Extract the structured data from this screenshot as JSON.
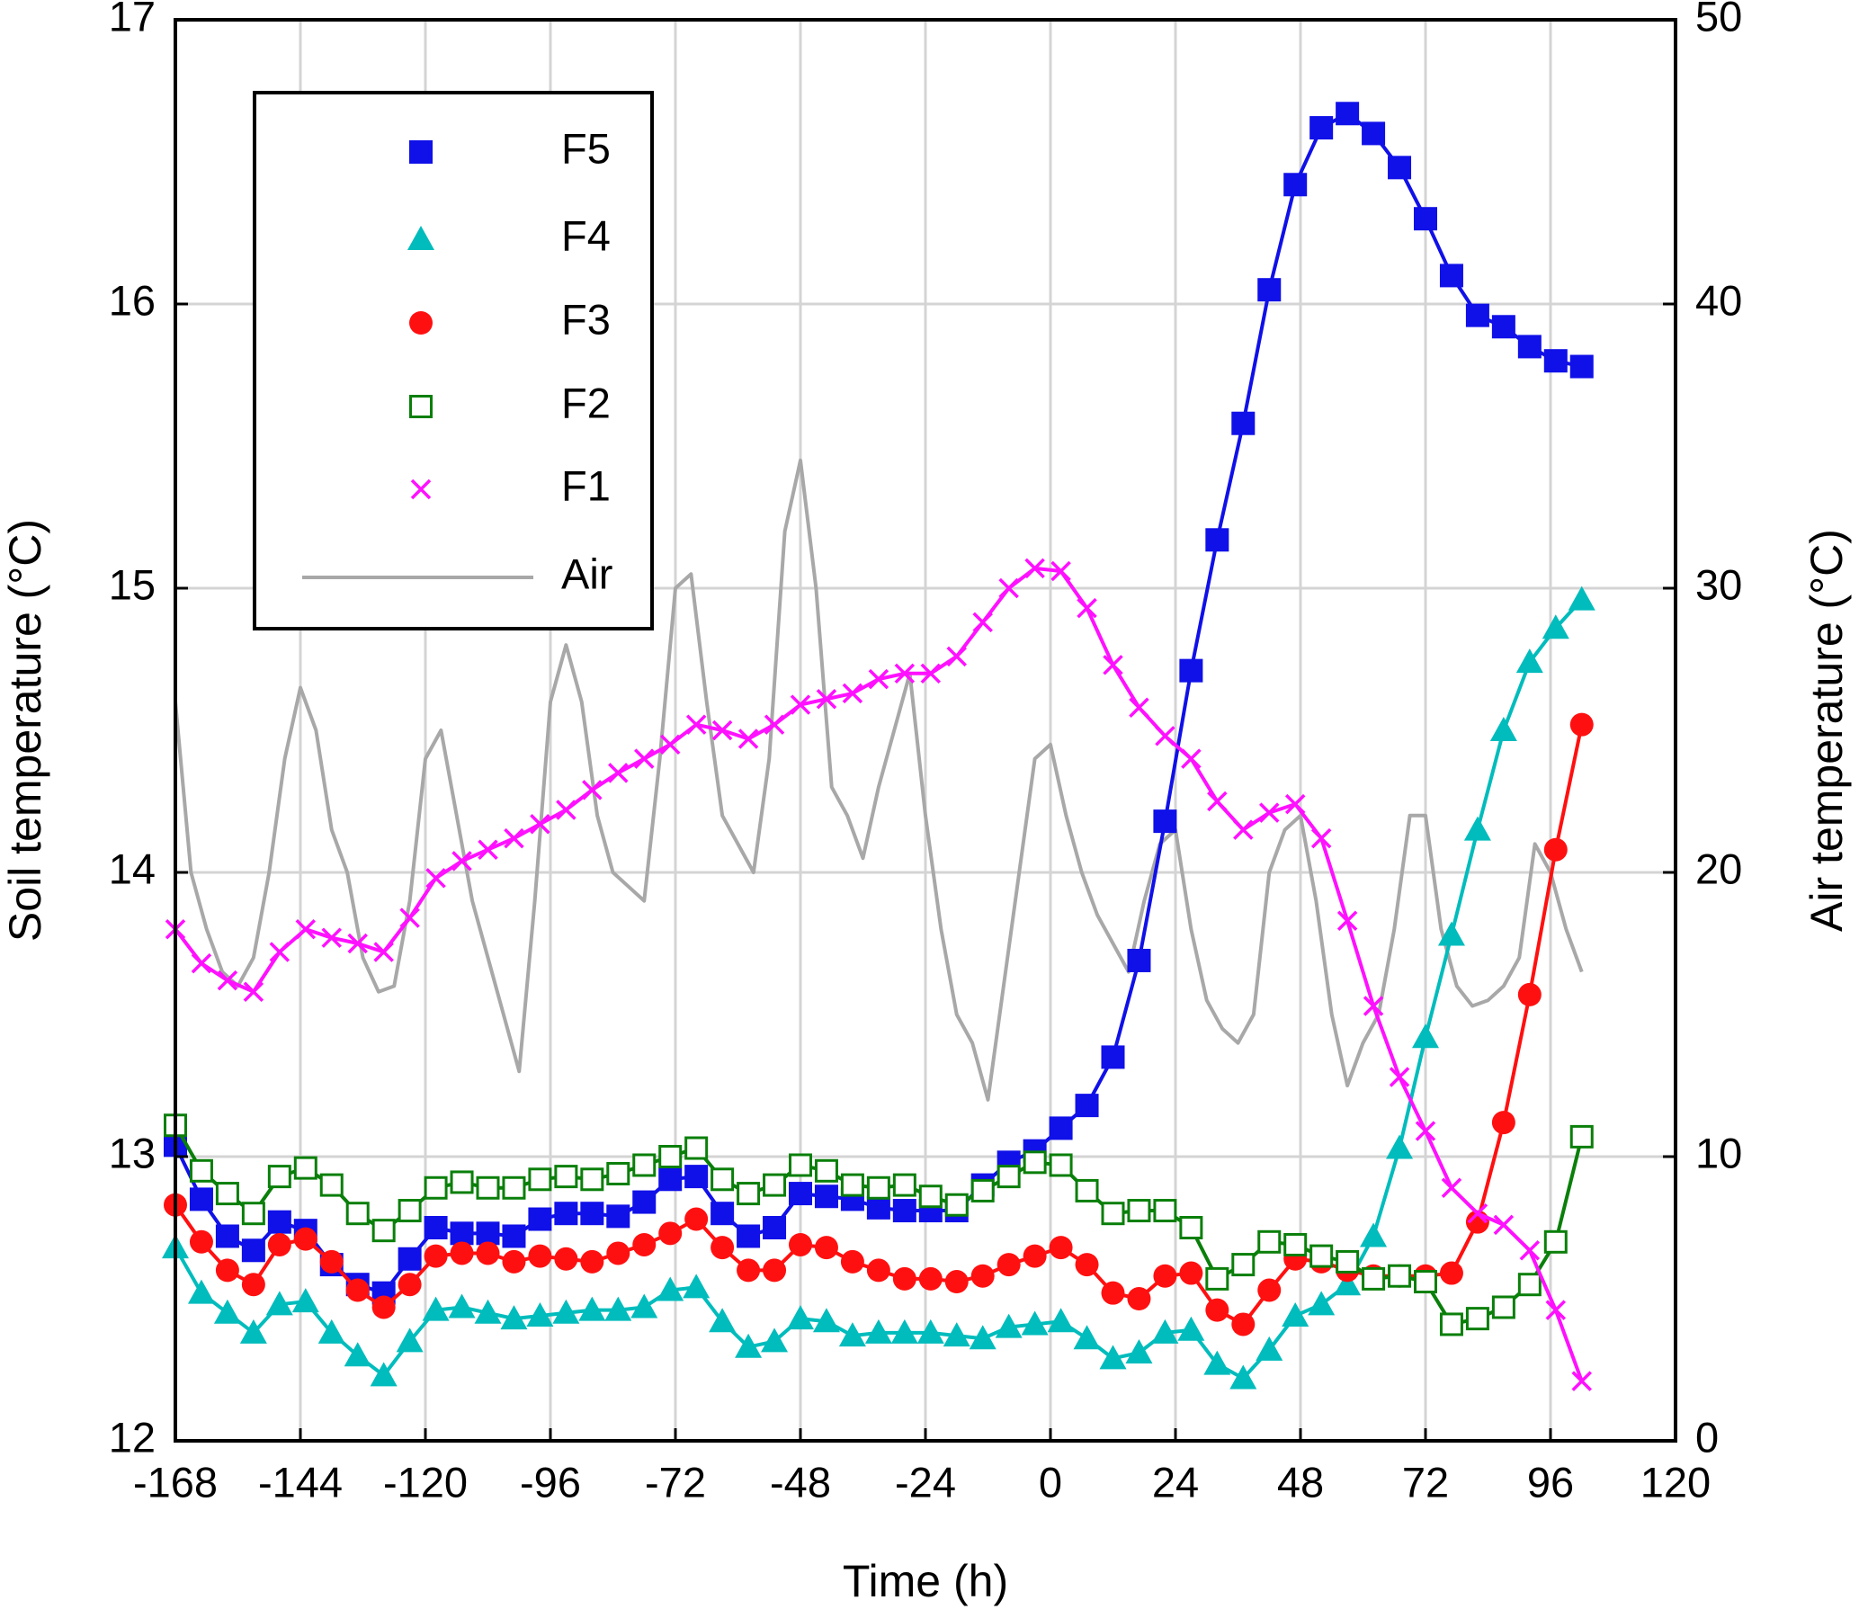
{
  "chart_data": {
    "type": "line",
    "x_label": "Time (h)",
    "y_label": "Soil temperature (°C)",
    "y2_label": "Air temperature (°C)",
    "xlim": [
      -168,
      120
    ],
    "xticks": [
      -168,
      -144,
      -120,
      -96,
      -72,
      -48,
      -24,
      0,
      24,
      48,
      72,
      96,
      120
    ],
    "ylim": [
      12,
      17
    ],
    "yticks": [
      12,
      13,
      14,
      15,
      16,
      17
    ],
    "y2lim": [
      0,
      50
    ],
    "y2ticks": [
      0,
      10,
      20,
      30,
      40,
      50
    ],
    "grid": true,
    "legend": "upper left",
    "x": [
      -168,
      -163,
      -158,
      -153,
      -148,
      -143,
      -138,
      -133,
      -128,
      -123,
      -118,
      -113,
      -108,
      -103,
      -98,
      -93,
      -88,
      -83,
      -78,
      -73,
      -68,
      -63,
      -58,
      -53,
      -48,
      -43,
      -38,
      -33,
      -28,
      -23,
      -18,
      -13,
      -8,
      -3,
      2,
      7,
      12,
      17,
      22,
      27,
      32,
      37,
      42,
      47,
      52,
      57,
      62,
      67,
      72,
      77,
      82,
      87,
      92,
      97,
      102
    ],
    "series": [
      {
        "name": "F5",
        "color": "#1010e8",
        "marker": "square",
        "values": [
          13.04,
          12.85,
          12.72,
          12.67,
          12.77,
          12.74,
          12.62,
          12.55,
          12.52,
          12.64,
          12.75,
          12.73,
          12.73,
          12.72,
          12.78,
          12.8,
          12.8,
          12.79,
          12.84,
          12.92,
          12.93,
          12.8,
          12.72,
          12.75,
          12.87,
          12.86,
          12.85,
          12.82,
          12.81,
          12.81,
          12.81,
          12.9,
          12.98,
          13.02,
          13.1,
          13.18,
          13.35,
          13.69,
          14.18,
          14.71,
          15.17,
          15.58,
          16.05,
          16.42,
          16.62,
          16.67,
          16.6,
          16.48,
          16.3,
          16.1,
          15.96,
          15.92,
          15.85,
          15.8,
          15.78
        ]
      },
      {
        "name": "F4",
        "color": "#00bcbc",
        "marker": "triangle",
        "values": [
          12.68,
          12.52,
          12.45,
          12.38,
          12.48,
          12.49,
          12.38,
          12.3,
          12.23,
          12.35,
          12.46,
          12.47,
          12.45,
          12.43,
          12.44,
          12.45,
          12.46,
          12.46,
          12.47,
          12.53,
          12.54,
          12.42,
          12.33,
          12.35,
          12.43,
          12.42,
          12.37,
          12.38,
          12.38,
          12.38,
          12.37,
          12.36,
          12.4,
          12.41,
          12.42,
          12.36,
          12.29,
          12.31,
          12.38,
          12.39,
          12.27,
          12.22,
          12.32,
          12.44,
          12.48,
          12.55,
          12.72,
          13.03,
          13.42,
          13.78,
          14.15,
          14.5,
          14.74,
          14.86,
          14.96
        ]
      },
      {
        "name": "F3",
        "color": "#ff1010",
        "marker": "circle",
        "values": [
          12.83,
          12.7,
          12.6,
          12.55,
          12.69,
          12.71,
          12.63,
          12.53,
          12.47,
          12.55,
          12.65,
          12.66,
          12.66,
          12.63,
          12.65,
          12.64,
          12.63,
          12.66,
          12.69,
          12.73,
          12.78,
          12.68,
          12.6,
          12.6,
          12.69,
          12.68,
          12.63,
          12.6,
          12.57,
          12.57,
          12.56,
          12.58,
          12.62,
          12.65,
          12.68,
          12.62,
          12.52,
          12.5,
          12.58,
          12.59,
          12.46,
          12.41,
          12.53,
          12.64,
          12.63,
          12.6,
          12.58,
          12.58,
          12.58,
          12.59,
          12.77,
          13.12,
          13.57,
          14.08,
          14.52
        ]
      },
      {
        "name": "F2",
        "color": "#0a7f0a",
        "marker": "open-square",
        "values": [
          13.11,
          12.95,
          12.87,
          12.8,
          12.93,
          12.96,
          12.9,
          12.8,
          12.74,
          12.81,
          12.89,
          12.91,
          12.89,
          12.89,
          12.92,
          12.93,
          12.92,
          12.94,
          12.97,
          13.0,
          13.03,
          12.92,
          12.87,
          12.9,
          12.97,
          12.95,
          12.9,
          12.89,
          12.9,
          12.86,
          12.83,
          12.88,
          12.93,
          12.98,
          12.97,
          12.88,
          12.8,
          12.81,
          12.81,
          12.75,
          12.57,
          12.62,
          12.7,
          12.69,
          12.65,
          12.63,
          12.57,
          12.58,
          12.56,
          12.41,
          12.43,
          12.47,
          12.55,
          12.7,
          13.07
        ]
      },
      {
        "name": "F1",
        "color": "#ff10ff",
        "marker": "x",
        "values": [
          13.8,
          13.68,
          13.62,
          13.58,
          13.72,
          13.8,
          13.77,
          13.75,
          13.72,
          13.84,
          13.98,
          14.04,
          14.08,
          14.12,
          14.17,
          14.22,
          14.29,
          14.35,
          14.4,
          14.45,
          14.52,
          14.5,
          14.47,
          14.52,
          14.59,
          14.61,
          14.63,
          14.68,
          14.7,
          14.7,
          14.76,
          14.88,
          15.0,
          15.07,
          15.06,
          14.93,
          14.73,
          14.58,
          14.48,
          14.4,
          14.25,
          14.15,
          14.21,
          14.24,
          14.12,
          13.83,
          13.53,
          13.28,
          13.09,
          12.89,
          12.8,
          12.76,
          12.67,
          12.46,
          12.21
        ]
      },
      {
        "name": "Air",
        "color": "#a8a8a8",
        "marker": "none",
        "axis": "y2",
        "x": [
          -168,
          -165,
          -162,
          -159,
          -156,
          -153,
          -150,
          -147,
          -144,
          -141,
          -138,
          -135,
          -132,
          -129,
          -126,
          -123,
          -120,
          -117,
          -114,
          -111,
          -108,
          -105,
          -102,
          -99,
          -96,
          -93,
          -90,
          -87,
          -84,
          -81,
          -78,
          -75,
          -72,
          -69,
          -66,
          -63,
          -60,
          -57,
          -54,
          -51,
          -48,
          -45,
          -42,
          -39,
          -36,
          -33,
          -30,
          -27,
          -24,
          -21,
          -18,
          -15,
          -12,
          -9,
          -6,
          -3,
          0,
          3,
          6,
          9,
          12,
          15,
          18,
          21,
          24,
          27,
          30,
          33,
          36,
          39,
          42,
          45,
          48,
          51,
          54,
          57,
          60,
          63,
          66,
          69,
          72,
          75,
          78,
          81,
          84,
          87,
          90,
          93,
          96,
          99,
          102
        ],
        "values": [
          26,
          20,
          18,
          16.5,
          16,
          17,
          20,
          24,
          26.5,
          25,
          21.5,
          20,
          17,
          15.8,
          16,
          19,
          24,
          25,
          22,
          19,
          17,
          15,
          13,
          19,
          26,
          28,
          26,
          22,
          20,
          19.5,
          19,
          24,
          30,
          30.5,
          26,
          22,
          21,
          20,
          24,
          32,
          34.5,
          30,
          23,
          22,
          20.5,
          23,
          25,
          27,
          22,
          18,
          15,
          14,
          12,
          16,
          20,
          24,
          24.5,
          22,
          20,
          18.5,
          17.5,
          16.5,
          19,
          21,
          21.5,
          18,
          15.5,
          14.5,
          14,
          15,
          20,
          21.5,
          22,
          19,
          15,
          12.5,
          14,
          15,
          18,
          22,
          22,
          18,
          16,
          15.3,
          15.5,
          16,
          17,
          21,
          20,
          18,
          16.5
        ]
      }
    ]
  }
}
